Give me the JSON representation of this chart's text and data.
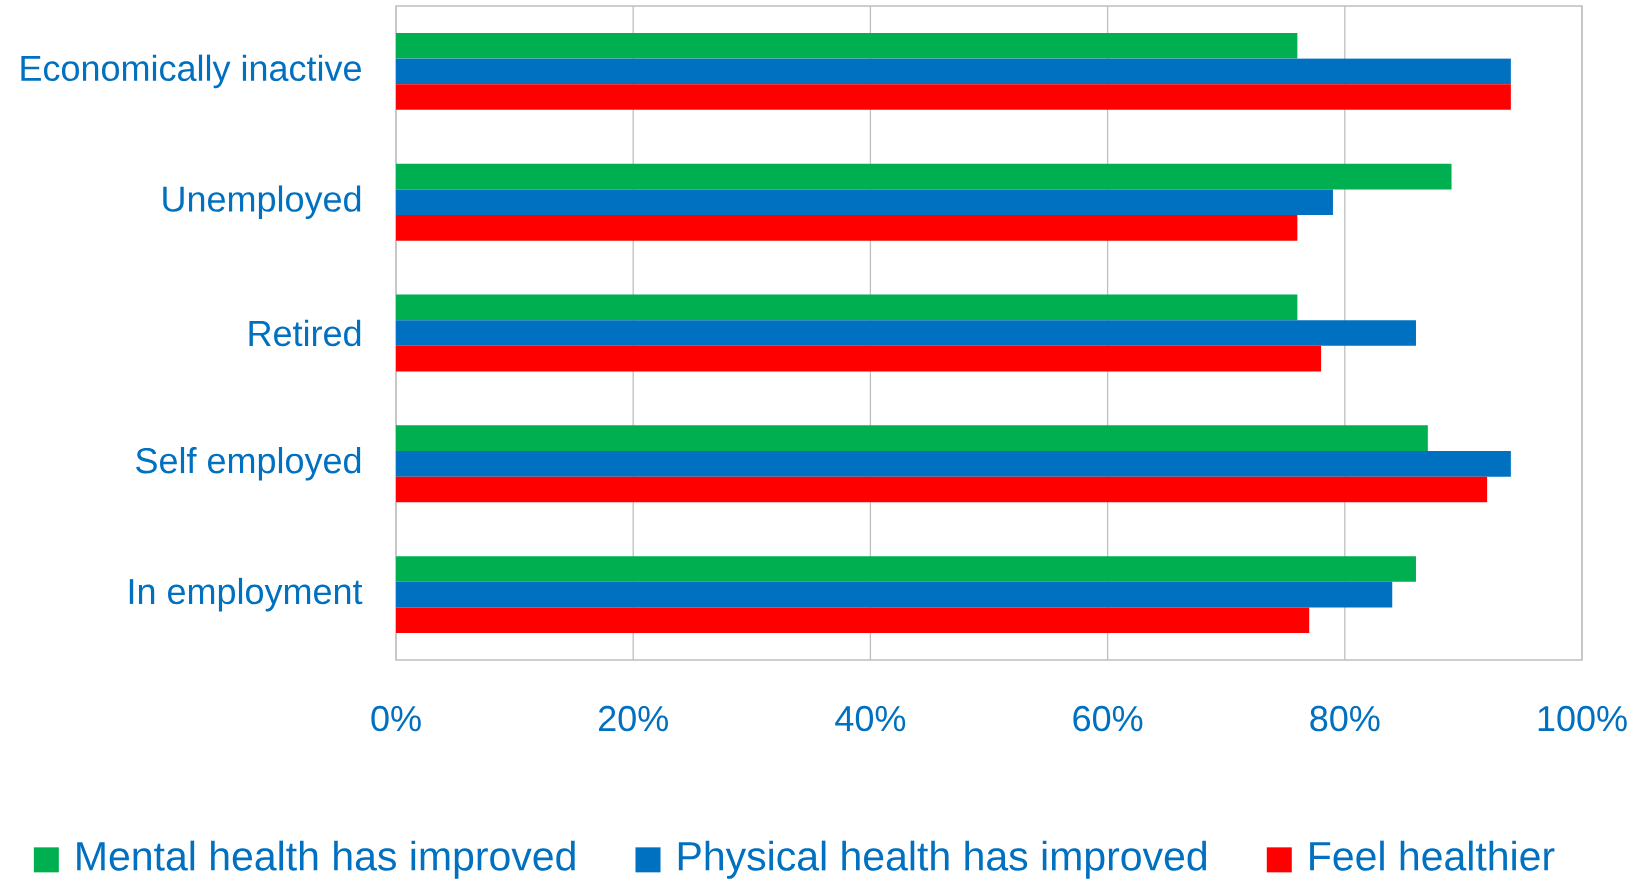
{
  "chart_data": {
    "type": "bar",
    "orientation": "horizontal",
    "categories": [
      "Economically inactive",
      "Unemployed",
      "Retired",
      "Self employed",
      "In employment"
    ],
    "series": [
      {
        "name": "Mental health has improved",
        "color": "#00b050",
        "values": [
          76,
          89,
          76,
          87,
          86
        ]
      },
      {
        "name": "Physical health has improved",
        "color": "#0070c0",
        "values": [
          94,
          79,
          86,
          94,
          84
        ]
      },
      {
        "name": "Feel healthier",
        "color": "#ff0000",
        "values": [
          94,
          76,
          78,
          92,
          77
        ]
      }
    ],
    "xlim": [
      0,
      100
    ],
    "xticks": [
      {
        "value": 0,
        "label": "0%"
      },
      {
        "value": 20,
        "label": "20%"
      },
      {
        "value": 40,
        "label": "40%"
      },
      {
        "value": 60,
        "label": "60%"
      },
      {
        "value": 80,
        "label": "80%"
      },
      {
        "value": 100,
        "label": "100%"
      }
    ],
    "grid": "x",
    "legend": "bottom"
  }
}
